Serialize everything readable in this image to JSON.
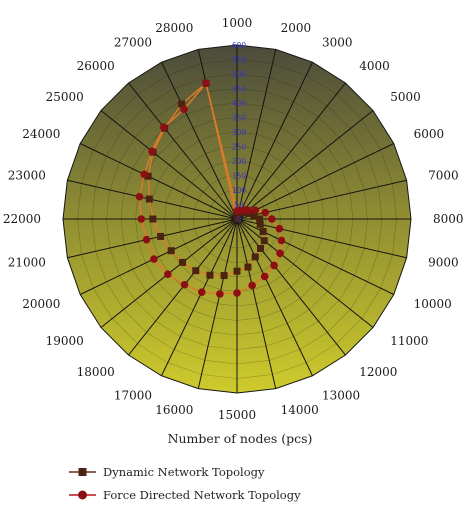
{
  "chart_data": {
    "type": "radar",
    "categories": [
      "1000",
      "2000",
      "3000",
      "4000",
      "5000",
      "6000",
      "7000",
      "8000",
      "9000",
      "10000",
      "11000",
      "12000",
      "13000",
      "14000",
      "15000",
      "16000",
      "17000",
      "18000",
      "19000",
      "20000",
      "21000",
      "22000",
      "23000",
      "24000",
      "25000",
      "26000",
      "27000",
      "28000"
    ],
    "series": [
      {
        "name": "Dynamic Network Topology",
        "values": [
          0,
          22,
          28,
          38,
          40,
          45,
          60,
          78,
          82,
          100,
          120,
          130,
          145,
          170,
          180,
          200,
          215,
          228,
          240,
          252,
          270,
          290,
          310,
          340,
          370,
          400,
          440,
          480
        ],
        "color": "#6b2d12"
      },
      {
        "name": "Force Directed Network Topology",
        "values": [
          28,
          30,
          32,
          40,
          48,
          70,
          100,
          120,
          150,
          170,
          190,
          205,
          220,
          235,
          255,
          265,
          280,
          290,
          305,
          318,
          320,
          330,
          345,
          355,
          375,
          405,
          420,
          480
        ],
        "color": "#b5161b"
      }
    ],
    "rlim": [
      0,
      600
    ],
    "r_ticks": [
      "0",
      "50",
      "100",
      "150",
      "200",
      "250",
      "300",
      "350",
      "400",
      "450",
      "500",
      "550",
      "600"
    ],
    "xlabel": "Number of nodes (pcs)",
    "grid": true,
    "legend_position": "bottom-left",
    "colors": {
      "fill_top": "#4a4a3a",
      "fill_bottom": "#c9c62e",
      "grid": "#1a1a1a",
      "series_line": "#e07a2a",
      "r_tick_text": "#3b36c9"
    }
  }
}
